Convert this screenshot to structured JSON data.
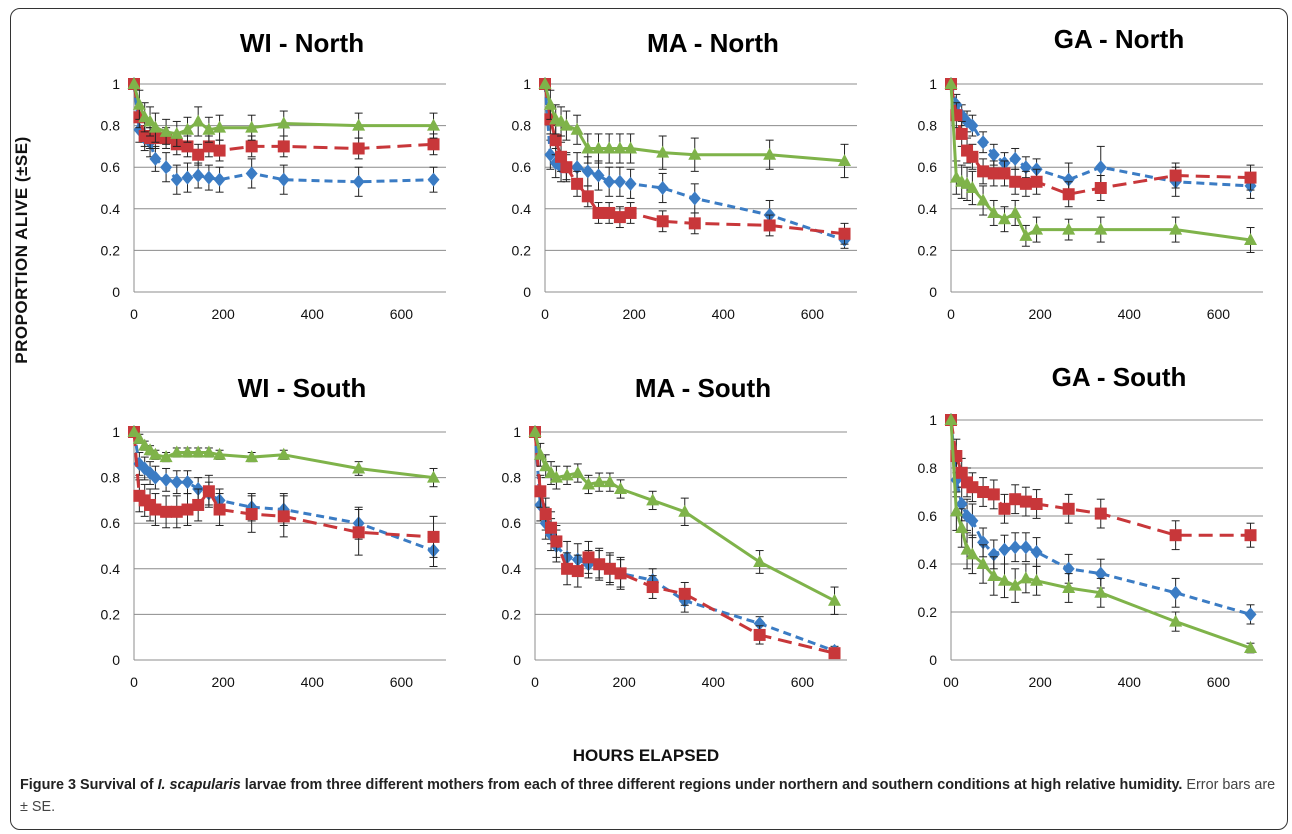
{
  "figure": {
    "y_axis_label": "PROPORTION ALIVE (±SE)",
    "x_axis_label": "HOURS ELAPSED",
    "caption_bold_1": "Figure 3 Survival of ",
    "caption_italic": "I. scapularis",
    "caption_bold_2": " larvae from three different mothers from each of three different regions under northern and southern conditions at high relative humidity.",
    "caption_rest": " Error bars are ± SE."
  },
  "colors": {
    "blue": "#3B7CC4",
    "red": "#C8373A",
    "green": "#7FB34A",
    "grid": "#8c8c8c"
  },
  "chart_data": [
    {
      "type": "line",
      "title": "WI - North",
      "ylim": [
        0,
        1
      ],
      "xlim": [
        0,
        700
      ],
      "yticks": [
        "0",
        "0.2",
        "0.4",
        "0.6",
        "0.8",
        "1"
      ],
      "xticks": [
        "0",
        "200",
        "400",
        "600"
      ],
      "grid": true,
      "series": [
        {
          "color": "blue",
          "dashed": true,
          "x": [
            0,
            12,
            24,
            36,
            48,
            72,
            96,
            120,
            144,
            168,
            192,
            264,
            336,
            504,
            672
          ],
          "y": [
            1.0,
            0.78,
            0.74,
            0.72,
            0.64,
            0.6,
            0.54,
            0.55,
            0.56,
            0.55,
            0.54,
            0.57,
            0.54,
            0.53,
            0.54
          ],
          "err": [
            0,
            0.06,
            0.06,
            0.07,
            0.06,
            0.07,
            0.07,
            0.07,
            0.06,
            0.06,
            0.06,
            0.07,
            0.07,
            0.07,
            0.06
          ]
        },
        {
          "color": "red",
          "dashed": true,
          "x": [
            0,
            12,
            24,
            36,
            48,
            72,
            96,
            120,
            144,
            168,
            192,
            264,
            336,
            504,
            672
          ],
          "y": [
            1.0,
            0.84,
            0.75,
            0.74,
            0.74,
            0.74,
            0.71,
            0.7,
            0.66,
            0.7,
            0.68,
            0.7,
            0.7,
            0.69,
            0.71
          ],
          "err": [
            0,
            0.05,
            0.05,
            0.05,
            0.05,
            0.05,
            0.05,
            0.05,
            0.05,
            0.05,
            0.05,
            0.05,
            0.05,
            0.05,
            0.05
          ]
        },
        {
          "color": "green",
          "dashed": false,
          "x": [
            0,
            12,
            24,
            36,
            48,
            72,
            96,
            120,
            144,
            168,
            192,
            264,
            336,
            504,
            672
          ],
          "y": [
            1.0,
            0.9,
            0.84,
            0.82,
            0.79,
            0.77,
            0.76,
            0.78,
            0.82,
            0.78,
            0.79,
            0.79,
            0.81,
            0.8,
            0.8
          ],
          "err": [
            0,
            0.07,
            0.07,
            0.07,
            0.07,
            0.06,
            0.06,
            0.06,
            0.07,
            0.06,
            0.06,
            0.06,
            0.06,
            0.06,
            0.06
          ]
        }
      ]
    },
    {
      "type": "line",
      "title": "MA - North",
      "ylim": [
        0,
        1
      ],
      "xlim": [
        0,
        700
      ],
      "yticks": [
        "0",
        "0.2",
        "0.4",
        "0.6",
        "0.8",
        "1"
      ],
      "xticks": [
        "0",
        "200",
        "400",
        "600"
      ],
      "grid": true,
      "series": [
        {
          "color": "blue",
          "dashed": true,
          "x": [
            0,
            12,
            24,
            36,
            48,
            72,
            96,
            120,
            144,
            168,
            192,
            264,
            336,
            504,
            672
          ],
          "y": [
            1.0,
            0.66,
            0.62,
            0.6,
            0.6,
            0.6,
            0.58,
            0.56,
            0.53,
            0.53,
            0.52,
            0.5,
            0.45,
            0.37,
            0.25
          ],
          "err": [
            0,
            0.07,
            0.07,
            0.07,
            0.07,
            0.07,
            0.07,
            0.07,
            0.07,
            0.07,
            0.07,
            0.07,
            0.07,
            0.07,
            0.04
          ]
        },
        {
          "color": "red",
          "dashed": true,
          "x": [
            0,
            12,
            24,
            36,
            48,
            72,
            96,
            120,
            144,
            168,
            192,
            264,
            336,
            504,
            672
          ],
          "y": [
            1.0,
            0.83,
            0.73,
            0.65,
            0.6,
            0.52,
            0.46,
            0.38,
            0.38,
            0.36,
            0.38,
            0.34,
            0.33,
            0.32,
            0.28
          ],
          "err": [
            0,
            0.07,
            0.07,
            0.07,
            0.06,
            0.06,
            0.05,
            0.05,
            0.05,
            0.05,
            0.05,
            0.05,
            0.05,
            0.05,
            0.05
          ]
        },
        {
          "color": "green",
          "dashed": false,
          "x": [
            0,
            12,
            24,
            36,
            48,
            72,
            96,
            120,
            144,
            168,
            192,
            264,
            336,
            504,
            672
          ],
          "y": [
            1.0,
            0.9,
            0.83,
            0.82,
            0.8,
            0.78,
            0.69,
            0.69,
            0.69,
            0.69,
            0.69,
            0.67,
            0.66,
            0.66,
            0.63
          ],
          "err": [
            0,
            0.07,
            0.07,
            0.07,
            0.07,
            0.07,
            0.07,
            0.07,
            0.07,
            0.07,
            0.07,
            0.08,
            0.08,
            0.07,
            0.08
          ]
        }
      ]
    },
    {
      "type": "line",
      "title": "GA - North",
      "ylim": [
        0,
        1
      ],
      "xlim": [
        0,
        700
      ],
      "yticks": [
        "0",
        "0.2",
        "0.4",
        "0.6",
        "0.8",
        "1"
      ],
      "xticks": [
        "0",
        "200",
        "400",
        "600"
      ],
      "grid": true,
      "series": [
        {
          "color": "blue",
          "dashed": true,
          "x": [
            0,
            12,
            24,
            36,
            48,
            72,
            96,
            120,
            144,
            168,
            192,
            264,
            336,
            504,
            672
          ],
          "y": [
            1.0,
            0.9,
            0.85,
            0.82,
            0.8,
            0.72,
            0.66,
            0.62,
            0.64,
            0.6,
            0.59,
            0.54,
            0.6,
            0.53,
            0.51
          ],
          "err": [
            0,
            0.05,
            0.05,
            0.05,
            0.05,
            0.05,
            0.05,
            0.05,
            0.05,
            0.05,
            0.05,
            0.08,
            0.1,
            0.07,
            0.06
          ]
        },
        {
          "color": "red",
          "dashed": true,
          "x": [
            0,
            12,
            24,
            36,
            48,
            72,
            96,
            120,
            144,
            168,
            192,
            264,
            336,
            504,
            672
          ],
          "y": [
            1.0,
            0.85,
            0.76,
            0.68,
            0.65,
            0.58,
            0.57,
            0.57,
            0.53,
            0.52,
            0.53,
            0.47,
            0.5,
            0.56,
            0.55
          ],
          "err": [
            0,
            0.06,
            0.06,
            0.06,
            0.06,
            0.06,
            0.06,
            0.06,
            0.06,
            0.06,
            0.06,
            0.06,
            0.06,
            0.06,
            0.06
          ]
        },
        {
          "color": "green",
          "dashed": false,
          "x": [
            0,
            12,
            24,
            36,
            48,
            72,
            96,
            120,
            144,
            168,
            192,
            264,
            336,
            504,
            672
          ],
          "y": [
            1.0,
            0.55,
            0.53,
            0.52,
            0.5,
            0.44,
            0.38,
            0.35,
            0.38,
            0.27,
            0.3,
            0.3,
            0.3,
            0.3,
            0.25
          ],
          "err": [
            0,
            0.08,
            0.08,
            0.08,
            0.08,
            0.07,
            0.06,
            0.06,
            0.06,
            0.05,
            0.06,
            0.05,
            0.06,
            0.06,
            0.06
          ]
        }
      ]
    },
    {
      "type": "line",
      "title": "WI - South",
      "ylim": [
        0,
        1
      ],
      "xlim": [
        0,
        700
      ],
      "yticks": [
        "0",
        "0.2",
        "0.4",
        "0.6",
        "0.8",
        "1"
      ],
      "xticks": [
        "0",
        "200",
        "400",
        "600"
      ],
      "grid": true,
      "series": [
        {
          "color": "blue",
          "dashed": true,
          "x": [
            0,
            12,
            24,
            36,
            48,
            72,
            96,
            120,
            144,
            168,
            192,
            264,
            336,
            504,
            672
          ],
          "y": [
            1.0,
            0.86,
            0.84,
            0.82,
            0.8,
            0.79,
            0.78,
            0.78,
            0.75,
            0.73,
            0.7,
            0.67,
            0.66,
            0.6,
            0.48
          ],
          "err": [
            0,
            0.05,
            0.05,
            0.05,
            0.05,
            0.05,
            0.05,
            0.05,
            0.05,
            0.05,
            0.05,
            0.06,
            0.07,
            0.07,
            0.07
          ]
        },
        {
          "color": "red",
          "dashed": true,
          "x": [
            0,
            12,
            24,
            36,
            48,
            72,
            96,
            120,
            144,
            168,
            192,
            264,
            336,
            504,
            672
          ],
          "y": [
            1.0,
            0.72,
            0.7,
            0.68,
            0.66,
            0.65,
            0.65,
            0.66,
            0.68,
            0.74,
            0.66,
            0.64,
            0.63,
            0.56,
            0.54
          ],
          "err": [
            0,
            0.07,
            0.07,
            0.07,
            0.07,
            0.07,
            0.07,
            0.07,
            0.07,
            0.07,
            0.07,
            0.08,
            0.09,
            0.1,
            0.09
          ]
        },
        {
          "color": "green",
          "dashed": false,
          "x": [
            0,
            12,
            24,
            36,
            48,
            72,
            96,
            120,
            144,
            168,
            192,
            264,
            336,
            504,
            672
          ],
          "y": [
            1.0,
            0.97,
            0.94,
            0.92,
            0.9,
            0.89,
            0.91,
            0.91,
            0.91,
            0.91,
            0.9,
            0.89,
            0.9,
            0.84,
            0.8
          ],
          "err": [
            0,
            0.02,
            0.02,
            0.02,
            0.02,
            0.02,
            0.02,
            0.02,
            0.02,
            0.02,
            0.02,
            0.02,
            0.02,
            0.03,
            0.04
          ]
        }
      ]
    },
    {
      "type": "line",
      "title": "MA - South",
      "ylim": [
        0,
        1
      ],
      "xlim": [
        0,
        700
      ],
      "yticks": [
        "0",
        "0.2",
        "0.4",
        "0.6",
        "0.8",
        "1"
      ],
      "xticks": [
        "0",
        "200",
        "400",
        "600"
      ],
      "grid": true,
      "series": [
        {
          "color": "blue",
          "dashed": true,
          "x": [
            0,
            12,
            24,
            36,
            48,
            72,
            96,
            120,
            144,
            168,
            192,
            264,
            336,
            504,
            672
          ],
          "y": [
            1.0,
            0.68,
            0.6,
            0.55,
            0.5,
            0.45,
            0.44,
            0.42,
            0.42,
            0.4,
            0.38,
            0.35,
            0.26,
            0.16,
            0.04
          ],
          "err": [
            0,
            0.07,
            0.07,
            0.07,
            0.07,
            0.07,
            0.07,
            0.06,
            0.06,
            0.06,
            0.06,
            0.05,
            0.05,
            0.03,
            0.02
          ]
        },
        {
          "color": "red",
          "dashed": true,
          "x": [
            0,
            12,
            24,
            36,
            48,
            72,
            96,
            120,
            144,
            168,
            192,
            264,
            336,
            504,
            672
          ],
          "y": [
            1.0,
            0.74,
            0.64,
            0.58,
            0.52,
            0.4,
            0.39,
            0.45,
            0.42,
            0.4,
            0.38,
            0.32,
            0.29,
            0.11,
            0.03
          ],
          "err": [
            0,
            0.07,
            0.07,
            0.07,
            0.07,
            0.07,
            0.07,
            0.07,
            0.07,
            0.07,
            0.07,
            0.05,
            0.05,
            0.04,
            0.02
          ]
        },
        {
          "color": "green",
          "dashed": false,
          "x": [
            0,
            12,
            24,
            36,
            48,
            72,
            96,
            120,
            144,
            168,
            192,
            264,
            336,
            504,
            672
          ],
          "y": [
            1.0,
            0.9,
            0.85,
            0.82,
            0.8,
            0.81,
            0.82,
            0.77,
            0.78,
            0.78,
            0.75,
            0.7,
            0.65,
            0.43,
            0.26
          ],
          "err": [
            0,
            0.05,
            0.05,
            0.05,
            0.05,
            0.04,
            0.04,
            0.04,
            0.04,
            0.04,
            0.04,
            0.04,
            0.06,
            0.05,
            0.06
          ]
        }
      ]
    },
    {
      "type": "line",
      "title": "GA - South",
      "ylim": [
        0,
        1
      ],
      "xlim": [
        0,
        700
      ],
      "yticks": [
        "0",
        "0.2",
        "0.4",
        "0.6",
        "0.8",
        "1"
      ],
      "xticks": [
        "00",
        "200",
        "400",
        "600"
      ],
      "grid": true,
      "series": [
        {
          "color": "blue",
          "dashed": true,
          "x": [
            0,
            12,
            24,
            36,
            48,
            72,
            96,
            120,
            144,
            168,
            192,
            264,
            336,
            504,
            672
          ],
          "y": [
            1.0,
            0.75,
            0.65,
            0.6,
            0.58,
            0.49,
            0.44,
            0.46,
            0.47,
            0.47,
            0.45,
            0.38,
            0.36,
            0.28,
            0.19
          ],
          "err": [
            0,
            0.07,
            0.07,
            0.07,
            0.07,
            0.06,
            0.06,
            0.06,
            0.06,
            0.06,
            0.06,
            0.06,
            0.06,
            0.06,
            0.04
          ]
        },
        {
          "color": "red",
          "dashed": true,
          "x": [
            0,
            12,
            24,
            36,
            48,
            72,
            96,
            120,
            144,
            168,
            192,
            264,
            336,
            504,
            672
          ],
          "y": [
            1.0,
            0.85,
            0.78,
            0.74,
            0.72,
            0.7,
            0.69,
            0.63,
            0.67,
            0.66,
            0.65,
            0.63,
            0.61,
            0.52,
            0.52
          ],
          "err": [
            0,
            0.07,
            0.06,
            0.06,
            0.06,
            0.06,
            0.06,
            0.06,
            0.06,
            0.06,
            0.06,
            0.06,
            0.06,
            0.06,
            0.05
          ]
        },
        {
          "color": "green",
          "dashed": false,
          "x": [
            0,
            12,
            24,
            36,
            48,
            72,
            96,
            120,
            144,
            168,
            192,
            264,
            336,
            504,
            672
          ],
          "y": [
            1.0,
            0.62,
            0.55,
            0.46,
            0.44,
            0.4,
            0.35,
            0.33,
            0.31,
            0.34,
            0.33,
            0.3,
            0.28,
            0.16,
            0.05
          ],
          "err": [
            0,
            0.08,
            0.08,
            0.08,
            0.08,
            0.08,
            0.08,
            0.07,
            0.07,
            0.06,
            0.06,
            0.06,
            0.06,
            0.04,
            0.02
          ]
        }
      ]
    }
  ]
}
